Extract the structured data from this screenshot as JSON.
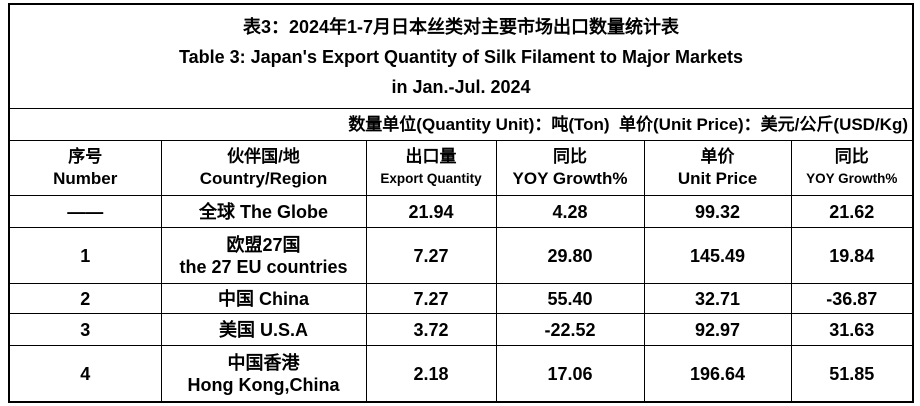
{
  "title": [
    "表3：2024年1-7月日本丝类对主要市场出口数量统计表",
    "Table 3: Japan's Export Quantity of Silk Filament to Major Markets",
    "in Jan.-Jul. 2024"
  ],
  "unit_note": "数量单位(Quantity Unit)：吨(Ton)  单价(Unit Price)：美元/公斤(USD/Kg)",
  "table": {
    "header": [
      [
        "序号",
        "Number"
      ],
      [
        "伙伴国/地",
        "Country/Region"
      ],
      [
        "出口量",
        "Export Quantity"
      ],
      [
        "同比",
        "YOY Growth%"
      ],
      [
        "单价",
        "Unit Price"
      ],
      [
        "同比",
        "YOY Growth%"
      ]
    ],
    "rows": [
      [
        "——",
        [
          "全球 The Globe"
        ],
        "21.94",
        "4.28",
        "99.32",
        "21.62"
      ],
      [
        "1",
        [
          "欧盟27国",
          "the 27 EU countries"
        ],
        "7.27",
        "29.80",
        "145.49",
        "19.84"
      ],
      [
        "2",
        [
          "中国 China"
        ],
        "7.27",
        "55.40",
        "32.71",
        "-36.87"
      ],
      [
        "3",
        [
          "美国 U.S.A"
        ],
        "3.72",
        "-22.52",
        "92.97",
        "31.63"
      ],
      [
        "4",
        [
          "中国香港",
          "Hong Kong,China"
        ],
        "2.18",
        "17.06",
        "196.64",
        "51.85"
      ]
    ]
  }
}
